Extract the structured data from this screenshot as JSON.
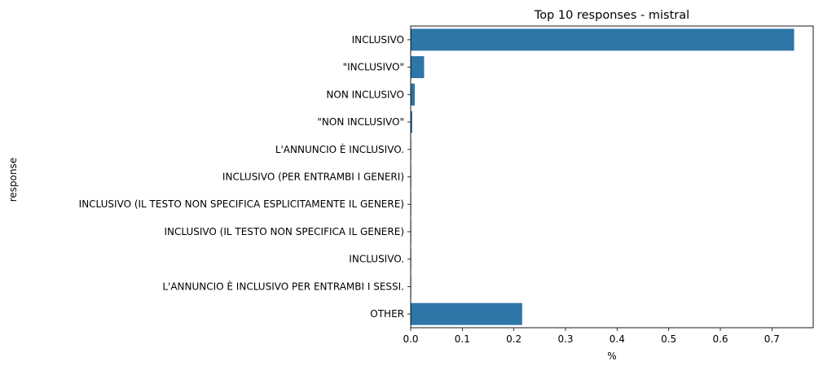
{
  "chart_data": {
    "type": "bar",
    "orientation": "horizontal",
    "title": "Top 10 responses - mistral",
    "xlabel": "%",
    "ylabel": "response",
    "categories": [
      " INCLUSIVO",
      " \"INCLUSIVO\"",
      " NON INCLUSIVO",
      " \"NON INCLUSIVO\"",
      " L'ANNUNCIO È INCLUSIVO.",
      " INCLUSIVO (PER ENTRAMBI I GENERI)",
      " INCLUSIVO (IL TESTO NON SPECIFICA ESPLICITAMENTE IL GENERE)",
      " INCLUSIVO (IL TESTO NON SPECIFICA IL GENERE)",
      " INCLUSIVO.",
      " L'ANNUNCIO È INCLUSIVO PER ENTRAMBI I SESSI.",
      "OTHER"
    ],
    "values": [
      0.743,
      0.026,
      0.008,
      0.003,
      0.001,
      0.001,
      0.001,
      0.001,
      0.001,
      0.001,
      0.216
    ],
    "xlim": [
      0,
      0.78
    ],
    "xticks": [
      0.0,
      0.1,
      0.2,
      0.3,
      0.4,
      0.5,
      0.6,
      0.7
    ],
    "xtick_labels": [
      "0.0",
      "0.1",
      "0.2",
      "0.3",
      "0.4",
      "0.5",
      "0.6",
      "0.7"
    ],
    "bar_color": "#2e75a8",
    "grid": false
  }
}
